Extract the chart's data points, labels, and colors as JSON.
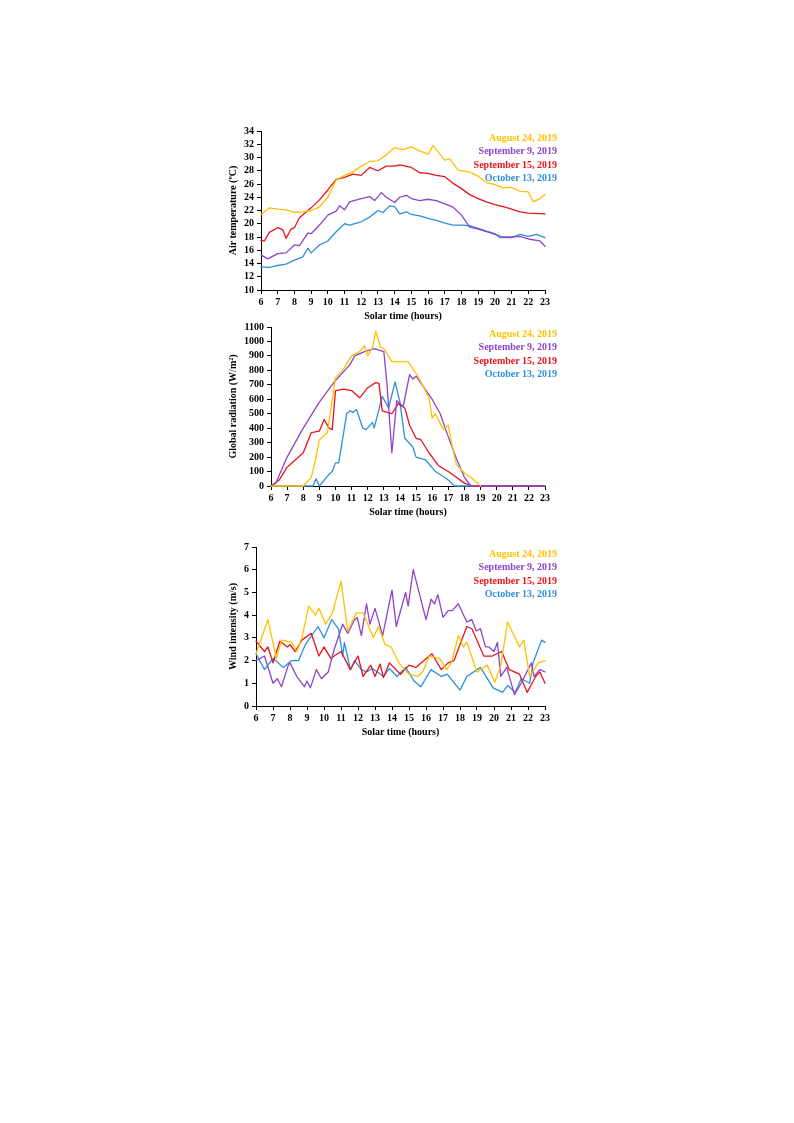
{
  "chart_data": [
    {
      "type": "line",
      "xlabel": "Solar time (hours)",
      "ylabel": "Air temperature (ºC)",
      "xlim": [
        6,
        23
      ],
      "xticks": [
        6,
        7,
        8,
        9,
        10,
        11,
        12,
        13,
        14,
        15,
        16,
        17,
        18,
        19,
        20,
        21,
        22,
        23
      ],
      "ylim": [
        10,
        34
      ],
      "yticks": [
        10,
        12,
        14,
        16,
        18,
        20,
        22,
        24,
        26,
        28,
        30,
        32,
        34
      ],
      "grid": false,
      "legend": "top right",
      "marker": "none",
      "line_style": "solid",
      "series": [
        {
          "name": "August 24, 2019",
          "color": "#ffc000",
          "x": [
            6,
            6.5,
            7,
            7.5,
            8,
            8.5,
            9,
            9.5,
            10,
            10.5,
            11,
            11.5,
            12,
            12.5,
            13,
            13.5,
            14,
            14.5,
            15,
            15.5,
            16,
            16.3,
            17,
            17.3,
            17.8,
            18.5,
            19,
            19.5,
            20,
            20.5,
            21,
            21.5,
            22,
            22.3,
            22.7,
            23
          ],
          "values": [
            21.4,
            22.4,
            22.2,
            22.1,
            21.7,
            21.8,
            22.0,
            22.5,
            24.0,
            26.6,
            27.3,
            27.8,
            28.7,
            29.4,
            29.5,
            30.4,
            31.5,
            31.2,
            31.6,
            31.0,
            30.5,
            31.8,
            29.6,
            29.8,
            28.1,
            27.8,
            27.2,
            26.2,
            25.9,
            25.4,
            25.5,
            24.9,
            24.8,
            23.3,
            23.8,
            24.4
          ]
        },
        {
          "name": "September 9, 2019",
          "color": "#8e44c8",
          "x": [
            6,
            6.4,
            7,
            7.5,
            8,
            8.3,
            8.8,
            9,
            9.5,
            10,
            10.5,
            10.7,
            11,
            11.3,
            12,
            12.5,
            12.8,
            13.2,
            13.5,
            14,
            14.3,
            14.7,
            15,
            15.5,
            16,
            16.5,
            17,
            17.5,
            18,
            18.5,
            19,
            19.5,
            20,
            20.5,
            21,
            21.5,
            22,
            22.7,
            23
          ],
          "values": [
            15.3,
            14.7,
            15.5,
            15.6,
            16.8,
            16.7,
            18.6,
            18.5,
            19.8,
            21.3,
            21.9,
            22.7,
            22.1,
            23.3,
            23.8,
            24.1,
            23.5,
            24.7,
            24.0,
            23.2,
            24.0,
            24.3,
            23.8,
            23.5,
            23.7,
            23.5,
            23.0,
            22.5,
            21.3,
            19.5,
            19.2,
            18.8,
            18.4,
            18.0,
            18.0,
            18.1,
            17.7,
            17.4,
            16.6
          ]
        },
        {
          "name": "September 15, 2019",
          "color": "#e8141b",
          "x": [
            6,
            6.2,
            6.5,
            7,
            7.3,
            7.5,
            7.8,
            8,
            8.3,
            9,
            9.5,
            10,
            10.5,
            11,
            11.5,
            12,
            12.5,
            13,
            13.5,
            14,
            14.3,
            15,
            15.5,
            16,
            16.5,
            17,
            17.5,
            18,
            18.5,
            19,
            19.5,
            20,
            20.5,
            21,
            21.5,
            22,
            23
          ],
          "values": [
            17.5,
            17.4,
            18.7,
            19.4,
            19.1,
            17.8,
            19.2,
            19.4,
            20.9,
            22.4,
            23.6,
            25.1,
            26.7,
            27.0,
            27.5,
            27.3,
            28.5,
            28.0,
            28.7,
            28.7,
            28.9,
            28.5,
            27.7,
            27.6,
            27.3,
            27.1,
            26.1,
            25.3,
            24.4,
            23.8,
            23.3,
            22.9,
            22.6,
            22.2,
            21.8,
            21.6,
            21.5
          ]
        },
        {
          "name": "October 13, 2019",
          "color": "#2e8fdc",
          "x": [
            6,
            6.5,
            7,
            7.5,
            8,
            8.5,
            8.8,
            9,
            9.5,
            10,
            10.5,
            11,
            11.3,
            12,
            12.5,
            13,
            13.3,
            13.7,
            14,
            14.3,
            14.7,
            15,
            15.5,
            16,
            16.5,
            17,
            17.5,
            18,
            18.5,
            19,
            19.5,
            20,
            20.3,
            21,
            21.5,
            22,
            22.5,
            23
          ],
          "values": [
            13.5,
            13.4,
            13.7,
            13.9,
            14.5,
            15.0,
            16.3,
            15.6,
            16.8,
            17.4,
            18.8,
            20.0,
            19.8,
            20.3,
            21.0,
            22.0,
            21.7,
            22.7,
            22.6,
            21.5,
            21.8,
            21.4,
            21.2,
            20.8,
            20.5,
            20.1,
            19.8,
            19.8,
            19.7,
            19.3,
            18.9,
            18.5,
            17.9,
            17.9,
            18.4,
            18.1,
            18.4,
            17.9
          ]
        }
      ]
    },
    {
      "type": "line",
      "xlabel": "Solar time (hours)",
      "ylabel": "Global radiation (W/m²)",
      "xlim": [
        6,
        23
      ],
      "xticks": [
        6,
        7,
        8,
        9,
        10,
        11,
        12,
        13,
        14,
        15,
        16,
        17,
        18,
        19,
        20,
        21,
        22,
        23
      ],
      "ylim": [
        0,
        1100
      ],
      "yticks": [
        0,
        100,
        200,
        300,
        400,
        500,
        600,
        700,
        800,
        900,
        1000,
        1100
      ],
      "grid": false,
      "legend": "top right",
      "marker": "none",
      "line_style": "solid",
      "series": [
        {
          "name": "August 24, 2019",
          "color": "#ffc000",
          "x": [
            6,
            8,
            8.5,
            8.8,
            9,
            9.5,
            10,
            10.5,
            11,
            11.5,
            11.8,
            12,
            12.3,
            12.5,
            12.8,
            13,
            13.5,
            14,
            14.5,
            15,
            15.5,
            15.8,
            16,
            16.2,
            16.7,
            17,
            17.2,
            17.5,
            18,
            18.5,
            19
          ],
          "values": [
            0,
            0,
            60,
            200,
            320,
            370,
            750,
            810,
            900,
            930,
            970,
            900,
            960,
            1070,
            960,
            950,
            860,
            860,
            860,
            780,
            680,
            610,
            470,
            500,
            390,
            420,
            300,
            150,
            90,
            50,
            0
          ]
        },
        {
          "name": "September 9, 2019",
          "color": "#8e44c8",
          "x": [
            6,
            6.3,
            7,
            8,
            9,
            10,
            10.9,
            11.2,
            11.8,
            12.4,
            13,
            13.2,
            13.5,
            13.8,
            14.2,
            14.6,
            14.8,
            15,
            15.5,
            16,
            16.5,
            17,
            17.5,
            18,
            18.4,
            23
          ],
          "values": [
            0,
            20,
            200,
            400,
            580,
            730,
            840,
            900,
            930,
            950,
            930,
            700,
            230,
            590,
            550,
            770,
            740,
            760,
            680,
            600,
            500,
            340,
            190,
            60,
            0,
            0
          ]
        },
        {
          "name": "September 15, 2019",
          "color": "#e8141b",
          "x": [
            6,
            6.5,
            7,
            7.5,
            8,
            8.5,
            9,
            9.3,
            9.6,
            9.8,
            10,
            10.5,
            11,
            11.5,
            12,
            12.5,
            12.7,
            12.9,
            13.5,
            13.9,
            14.3,
            14.6,
            15,
            15.3,
            15.8,
            16.4,
            17,
            17.5,
            18,
            18.5,
            23
          ],
          "values": [
            0,
            40,
            130,
            180,
            230,
            370,
            380,
            460,
            400,
            390,
            660,
            670,
            660,
            610,
            680,
            715,
            710,
            520,
            500,
            570,
            540,
            420,
            330,
            320,
            230,
            140,
            100,
            60,
            20,
            0,
            0
          ]
        },
        {
          "name": "October 13, 2019",
          "color": "#2e8fdc",
          "x": [
            6,
            8.6,
            8.8,
            9,
            9.6,
            9.8,
            10,
            10.2,
            10.7,
            10.9,
            11.1,
            11.3,
            11.7,
            11.9,
            12.3,
            12.4,
            12.9,
            13.3,
            13.7,
            14,
            14.3,
            14.8,
            15,
            15.6,
            16.2,
            16.9,
            17.4,
            23
          ],
          "values": [
            0,
            0,
            50,
            0,
            80,
            100,
            160,
            160,
            500,
            520,
            510,
            530,
            400,
            390,
            440,
            400,
            620,
            540,
            720,
            580,
            330,
            270,
            200,
            180,
            100,
            50,
            0,
            0
          ]
        }
      ]
    },
    {
      "type": "line",
      "xlabel": "Solar time (hours)",
      "ylabel": "Wind intensity (m/s)",
      "xlim": [
        6,
        23
      ],
      "xticks": [
        6,
        7,
        8,
        9,
        10,
        11,
        12,
        13,
        14,
        15,
        16,
        17,
        18,
        19,
        20,
        21,
        22,
        23
      ],
      "ylim": [
        0,
        7
      ],
      "yticks": [
        0,
        1,
        2,
        3,
        4,
        5,
        6,
        7
      ],
      "grid": false,
      "legend": "top right",
      "marker": "none",
      "line_style": "solid",
      "series": [
        {
          "name": "August 24, 2019",
          "color": "#ffc000",
          "x": [
            6,
            6.7,
            7.2,
            7.5,
            8.1,
            8.4,
            8.7,
            9.1,
            9.5,
            9.7,
            10.1,
            10.5,
            11,
            11.4,
            11.9,
            12.3,
            12.9,
            13.2,
            13.6,
            13.95,
            14.4,
            15,
            15.5,
            15.8,
            16.2,
            16.8,
            17.2,
            17.5,
            17.9,
            18.2,
            18.4,
            19,
            19.4,
            19.6,
            20.05,
            20.4,
            20.8,
            21.5,
            21.75,
            22.1,
            22.6,
            23
          ],
          "values": [
            2.3,
            3.8,
            2.1,
            2.9,
            2.8,
            2.4,
            3.0,
            4.4,
            4.0,
            4.3,
            3.6,
            4.1,
            5.5,
            3.3,
            4.1,
            4.1,
            3.0,
            3.5,
            2.7,
            2.6,
            1.9,
            1.4,
            1.3,
            1.5,
            2.2,
            2.1,
            1.6,
            1.9,
            3.1,
            2.6,
            2.8,
            1.5,
            1.7,
            1.8,
            1.05,
            1.8,
            3.7,
            2.6,
            2.9,
            1.3,
            1.9,
            2.0
          ]
        },
        {
          "name": "September 9, 2019",
          "color": "#8e44c8",
          "x": [
            6,
            6.5,
            7,
            7.25,
            7.5,
            7.9,
            8,
            8.4,
            8.7,
            8.85,
            9,
            9.2,
            9.55,
            9.85,
            10.25,
            10.6,
            11.1,
            11.4,
            11.8,
            11.95,
            12.2,
            12.5,
            12.7,
            13,
            13.45,
            14,
            14.25,
            14.8,
            14.95,
            15.25,
            16,
            16.3,
            16.5,
            16.7,
            17,
            17.3,
            17.55,
            17.9,
            18.4,
            18.7,
            18.96,
            19.2,
            19.5,
            19.7,
            20,
            20.2,
            20.4,
            20.75,
            21.2,
            21.6,
            22.2,
            22.35,
            22.7,
            23
          ],
          "values": [
            2.0,
            2.2,
            1.0,
            1.2,
            0.85,
            1.8,
            1.9,
            1.3,
            1.0,
            0.85,
            1.1,
            0.8,
            1.6,
            1.2,
            1.5,
            2.5,
            3.6,
            3.2,
            3.8,
            3.9,
            3.1,
            4.5,
            3.6,
            4.3,
            3.1,
            5.1,
            3.5,
            5.0,
            4.4,
            6.0,
            3.8,
            4.7,
            4.5,
            4.9,
            3.9,
            4.2,
            4.2,
            4.5,
            3.7,
            3.8,
            3.3,
            3.4,
            2.6,
            2.6,
            2.4,
            2.8,
            1.3,
            1.7,
            0.5,
            1.0,
            1.9,
            1.3,
            1.6,
            1.5
          ]
        },
        {
          "name": "September 15, 2019",
          "color": "#e8141b",
          "x": [
            6,
            6.5,
            6.7,
            7,
            7.4,
            7.85,
            8,
            8.3,
            8.7,
            9.25,
            9.7,
            10,
            10.4,
            11,
            11.55,
            12,
            12.3,
            12.75,
            13,
            13.3,
            13.5,
            13.85,
            14.5,
            15,
            15.4,
            16.35,
            16.9,
            17.3,
            17.65,
            18.4,
            18.7,
            19.4,
            19.9,
            20.45,
            20.9,
            21.5,
            21.95,
            22.45,
            22.7,
            23
          ],
          "values": [
            2.85,
            2.4,
            2.6,
            1.9,
            2.85,
            2.6,
            2.7,
            2.4,
            2.9,
            3.2,
            2.2,
            2.6,
            2.1,
            2.4,
            1.6,
            2.2,
            1.3,
            1.8,
            1.3,
            1.85,
            1.25,
            1.9,
            1.4,
            1.8,
            1.7,
            2.3,
            1.6,
            1.9,
            2.0,
            3.5,
            3.4,
            2.2,
            2.2,
            2.4,
            1.6,
            1.4,
            0.6,
            1.3,
            1.5,
            1.0
          ]
        },
        {
          "name": "October 13, 2019",
          "color": "#2e8fdc",
          "x": [
            6,
            6.5,
            7,
            7.6,
            8.1,
            8.5,
            8.9,
            9.65,
            10,
            10.45,
            10.85,
            11.1,
            11.2,
            11.55,
            11.8,
            12.2,
            12.5,
            12.85,
            13.5,
            13.85,
            14.3,
            14.8,
            15.3,
            15.7,
            16.3,
            16.9,
            17.25,
            18,
            18.4,
            19.2,
            19.95,
            20.5,
            20.8,
            21.25,
            21.6,
            22.1,
            22.3,
            22.8,
            23
          ],
          "values": [
            2.3,
            1.6,
            2.1,
            1.7,
            2.0,
            2.0,
            2.7,
            3.5,
            3.0,
            3.8,
            3.4,
            2.2,
            2.8,
            1.6,
            2.0,
            1.6,
            1.5,
            1.65,
            1.3,
            1.65,
            1.3,
            1.7,
            1.1,
            0.85,
            1.6,
            1.3,
            1.4,
            0.7,
            1.3,
            1.7,
            0.8,
            0.6,
            0.9,
            0.6,
            1.2,
            1.0,
            1.9,
            2.9,
            2.8
          ]
        }
      ]
    }
  ]
}
